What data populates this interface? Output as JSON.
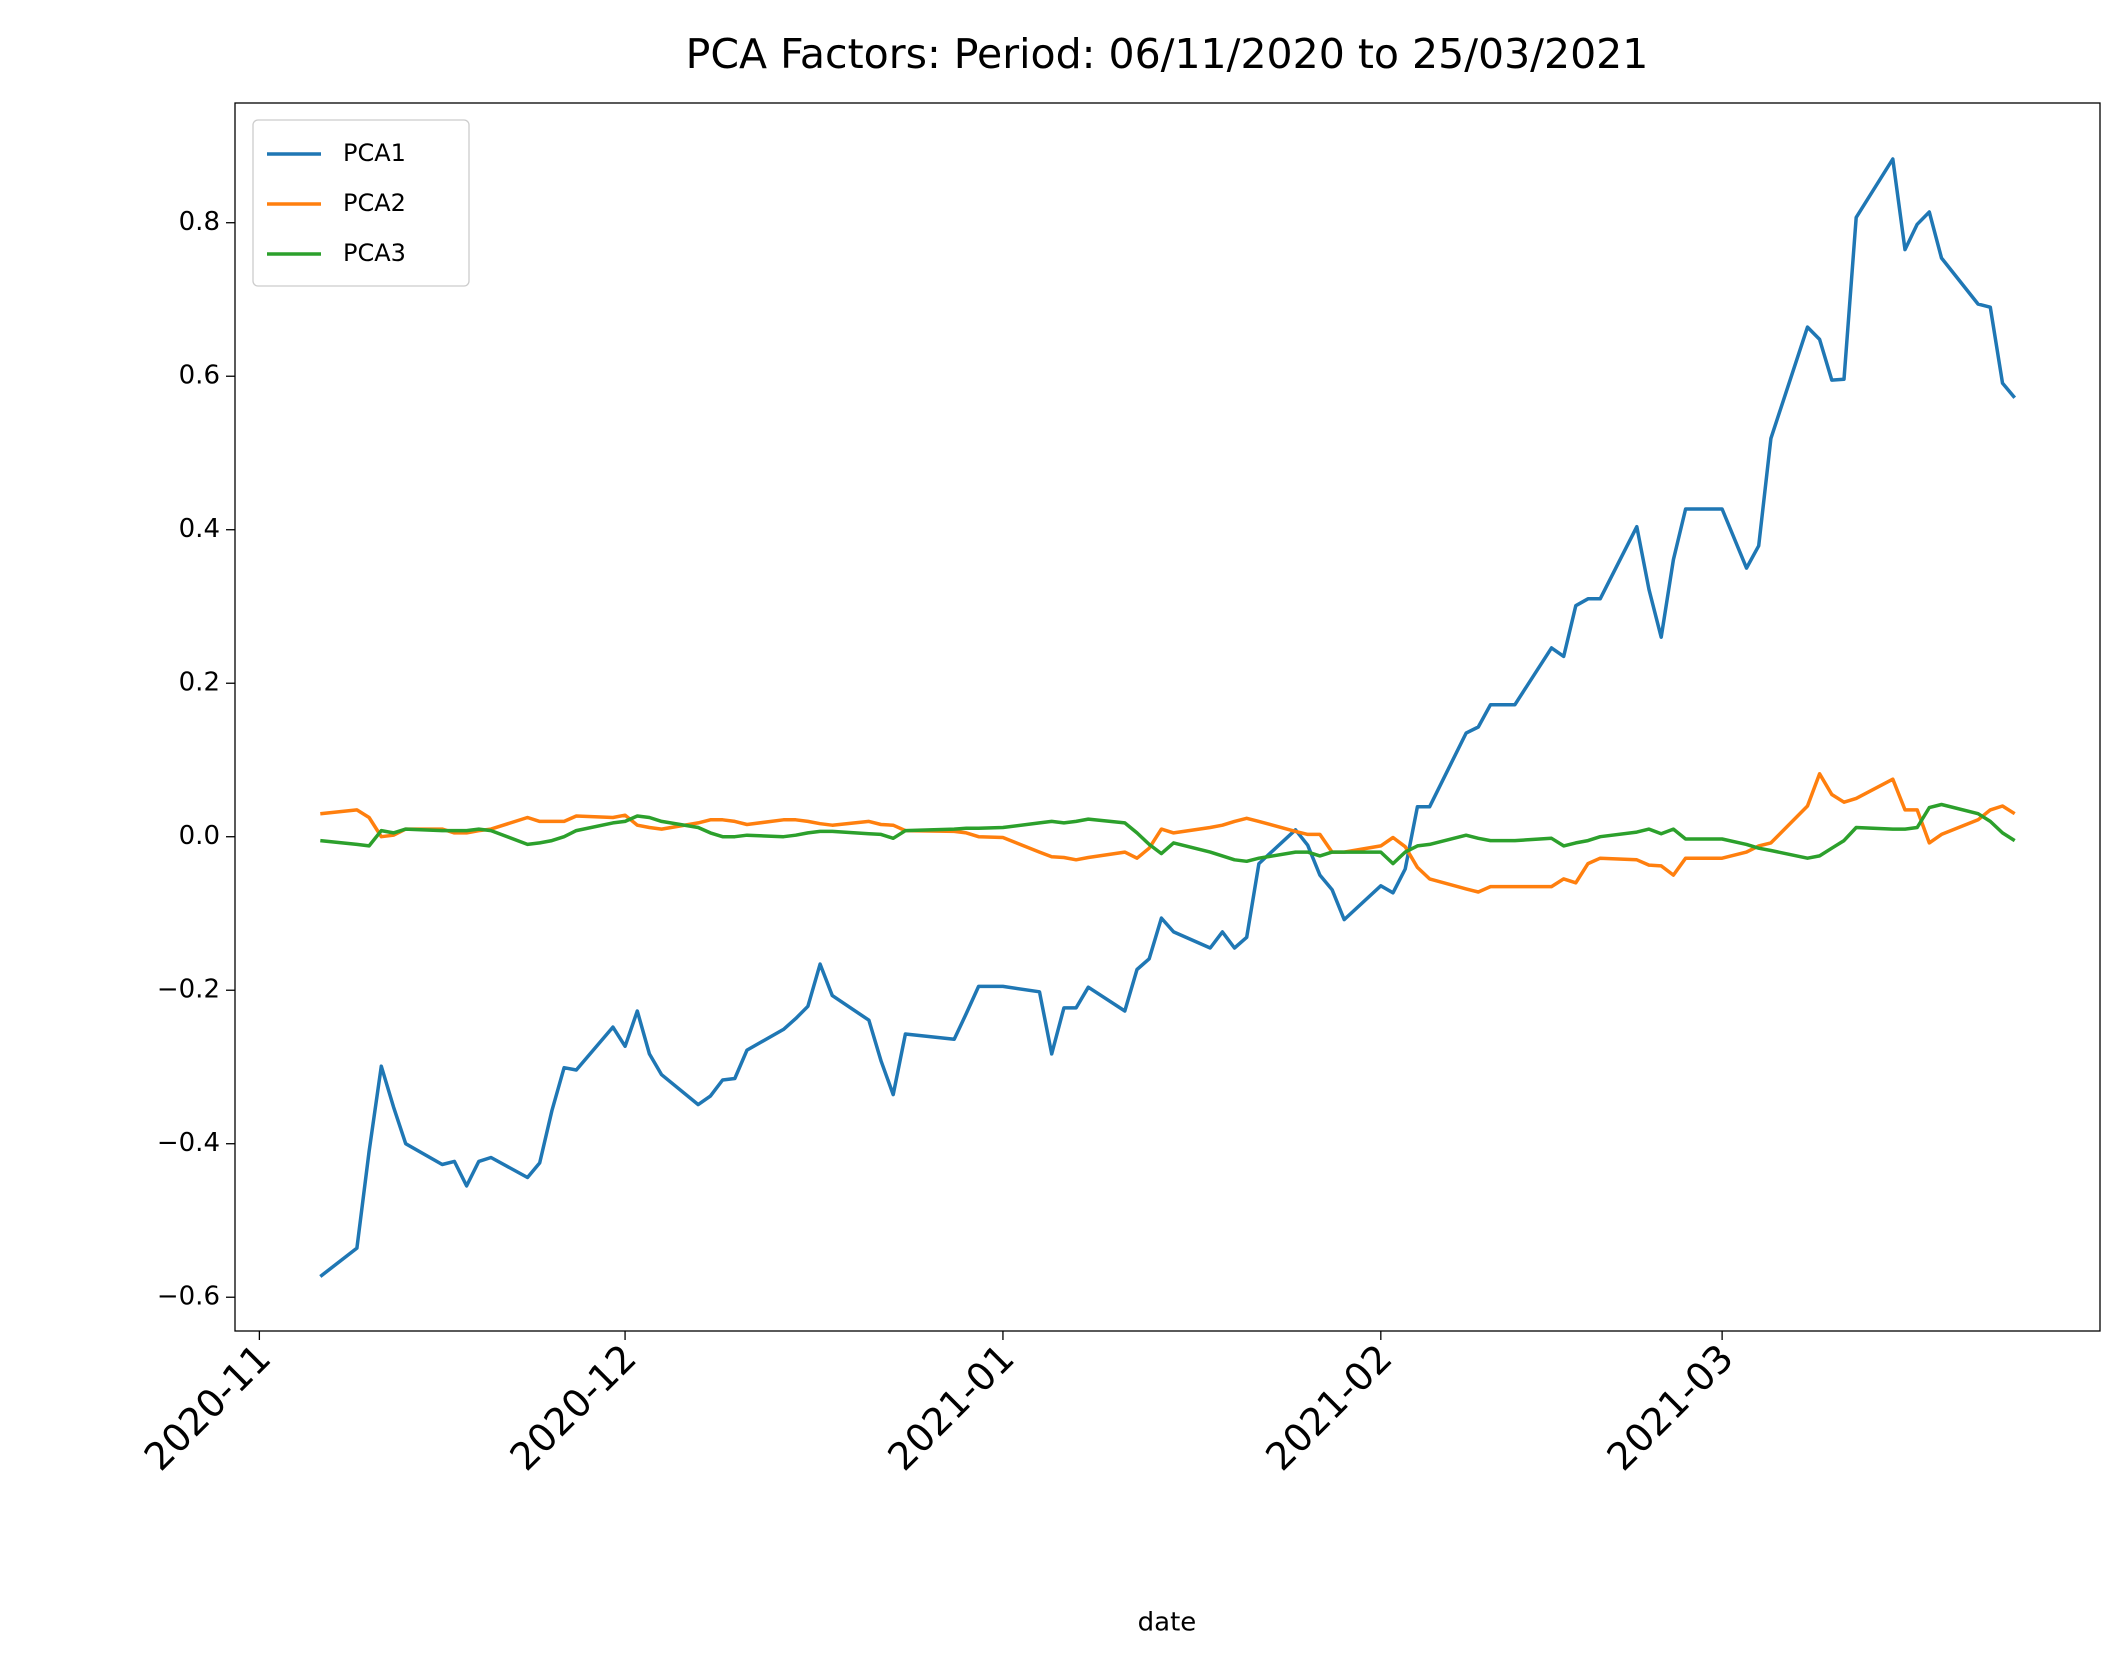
{
  "chart_data": {
    "type": "line",
    "title": "PCA Factors: Period: 06/11/2020 to 25/03/2021",
    "xlabel": "date",
    "x": [
      "2020-11-06",
      "2020-11-09",
      "2020-11-10",
      "2020-11-11",
      "2020-11-12",
      "2020-11-13",
      "2020-11-16",
      "2020-11-17",
      "2020-11-18",
      "2020-11-19",
      "2020-11-20",
      "2020-11-23",
      "2020-11-24",
      "2020-11-25",
      "2020-11-26",
      "2020-11-27",
      "2020-11-30",
      "2020-12-01",
      "2020-12-02",
      "2020-12-03",
      "2020-12-04",
      "2020-12-07",
      "2020-12-08",
      "2020-12-09",
      "2020-12-10",
      "2020-12-11",
      "2020-12-14",
      "2020-12-15",
      "2020-12-16",
      "2020-12-17",
      "2020-12-18",
      "2020-12-21",
      "2020-12-22",
      "2020-12-23",
      "2020-12-24",
      "2020-12-28",
      "2020-12-29",
      "2020-12-30",
      "2021-01-01",
      "2021-01-04",
      "2021-01-05",
      "2021-01-06",
      "2021-01-07",
      "2021-01-08",
      "2021-01-11",
      "2021-01-12",
      "2021-01-13",
      "2021-01-14",
      "2021-01-15",
      "2021-01-18",
      "2021-01-19",
      "2021-01-20",
      "2021-01-21",
      "2021-01-22",
      "2021-01-25",
      "2021-01-26",
      "2021-01-27",
      "2021-01-28",
      "2021-01-29",
      "2021-02-01",
      "2021-02-02",
      "2021-02-03",
      "2021-02-04",
      "2021-02-05",
      "2021-02-08",
      "2021-02-09",
      "2021-02-10",
      "2021-02-12",
      "2021-02-15",
      "2021-02-16",
      "2021-02-17",
      "2021-02-18",
      "2021-02-19",
      "2021-02-22",
      "2021-02-23",
      "2021-02-24",
      "2021-02-25",
      "2021-02-26",
      "2021-03-01",
      "2021-03-03",
      "2021-03-04",
      "2021-03-05",
      "2021-03-08",
      "2021-03-09",
      "2021-03-10",
      "2021-03-11",
      "2021-03-12",
      "2021-03-15",
      "2021-03-16",
      "2021-03-17",
      "2021-03-18",
      "2021-03-19",
      "2021-03-22",
      "2021-03-23",
      "2021-03-24",
      "2021-03-25"
    ],
    "series": [
      {
        "name": "PCA1",
        "color": "#1f77b4",
        "values": [
          -0.573,
          -0.536,
          -0.41,
          -0.299,
          -0.352,
          -0.4,
          -0.427,
          -0.423,
          -0.455,
          -0.423,
          -0.418,
          -0.444,
          -0.425,
          -0.357,
          -0.301,
          -0.304,
          -0.248,
          -0.273,
          -0.227,
          -0.283,
          -0.31,
          -0.349,
          -0.338,
          -0.317,
          -0.315,
          -0.278,
          -0.251,
          -0.237,
          -0.221,
          -0.166,
          -0.207,
          -0.239,
          -0.292,
          -0.336,
          -0.257,
          -0.264,
          -0.23,
          -0.195,
          -0.195,
          -0.202,
          -0.283,
          -0.223,
          -0.223,
          -0.196,
          -0.227,
          -0.173,
          -0.159,
          -0.106,
          -0.124,
          -0.145,
          -0.124,
          -0.145,
          -0.131,
          -0.035,
          0.009,
          -0.011,
          -0.05,
          -0.069,
          -0.108,
          -0.064,
          -0.073,
          -0.042,
          0.039,
          0.039,
          0.135,
          0.143,
          0.172,
          0.172,
          0.246,
          0.235,
          0.301,
          0.31,
          0.31,
          0.404,
          0.322,
          0.26,
          0.361,
          0.427,
          0.427,
          0.35,
          0.379,
          0.519,
          0.664,
          0.648,
          0.595,
          0.596,
          0.807,
          0.883,
          0.765,
          0.798,
          0.814,
          0.754,
          0.694,
          0.69,
          0.591,
          0.572
        ]
      },
      {
        "name": "PCA2",
        "color": "#ff7f0e",
        "values": [
          0.03,
          0.035,
          0.025,
          0.0,
          0.002,
          0.01,
          0.01,
          0.005,
          0.005,
          0.008,
          0.01,
          0.025,
          0.02,
          0.02,
          0.02,
          0.027,
          0.025,
          0.028,
          0.015,
          0.012,
          0.01,
          0.018,
          0.022,
          0.022,
          0.02,
          0.016,
          0.022,
          0.022,
          0.02,
          0.017,
          0.015,
          0.02,
          0.016,
          0.015,
          0.008,
          0.007,
          0.005,
          0.0,
          -0.001,
          -0.02,
          -0.026,
          -0.027,
          -0.03,
          -0.027,
          -0.02,
          -0.028,
          -0.015,
          0.01,
          0.005,
          0.012,
          0.015,
          0.02,
          0.024,
          0.02,
          0.007,
          0.003,
          0.003,
          -0.02,
          -0.02,
          -0.012,
          -0.001,
          -0.013,
          -0.04,
          -0.055,
          -0.068,
          -0.072,
          -0.065,
          -0.065,
          -0.065,
          -0.055,
          -0.06,
          -0.035,
          -0.028,
          -0.03,
          -0.037,
          -0.038,
          -0.05,
          -0.028,
          -0.028,
          -0.02,
          -0.012,
          -0.008,
          0.04,
          0.082,
          0.055,
          0.045,
          0.05,
          0.075,
          0.035,
          0.035,
          -0.008,
          0.003,
          0.022,
          0.035,
          0.04,
          0.03
        ]
      },
      {
        "name": "PCA3",
        "color": "#2ca02c",
        "values": [
          -0.005,
          -0.01,
          -0.012,
          0.008,
          0.005,
          0.01,
          0.008,
          0.008,
          0.008,
          0.01,
          0.008,
          -0.01,
          -0.008,
          -0.005,
          0.0,
          0.008,
          0.018,
          0.02,
          0.027,
          0.025,
          0.02,
          0.012,
          0.005,
          0.0,
          0.0,
          0.002,
          0.0,
          0.002,
          0.005,
          0.007,
          0.007,
          0.004,
          0.003,
          -0.002,
          0.008,
          0.01,
          0.011,
          0.011,
          0.012,
          0.018,
          0.02,
          0.018,
          0.02,
          0.023,
          0.018,
          0.005,
          -0.01,
          -0.022,
          -0.008,
          -0.02,
          -0.025,
          -0.03,
          -0.032,
          -0.028,
          -0.02,
          -0.02,
          -0.025,
          -0.02,
          -0.02,
          -0.02,
          -0.035,
          -0.02,
          -0.012,
          -0.01,
          0.002,
          -0.002,
          -0.005,
          -0.005,
          -0.002,
          -0.012,
          -0.008,
          -0.005,
          0.0,
          0.006,
          0.01,
          0.004,
          0.01,
          -0.003,
          -0.003,
          -0.01,
          -0.015,
          -0.018,
          -0.028,
          -0.025,
          -0.015,
          -0.005,
          0.012,
          0.01,
          0.01,
          0.012,
          0.038,
          0.042,
          0.03,
          0.02,
          0.005,
          -0.005
        ]
      }
    ],
    "xlim": [
      "2020-10-30",
      "2021-04-01"
    ],
    "xticks": [
      {
        "value": "2020-11-01",
        "label": "2020-11"
      },
      {
        "value": "2020-12-01",
        "label": "2020-12"
      },
      {
        "value": "2021-01-01",
        "label": "2021-01"
      },
      {
        "value": "2021-02-01",
        "label": "2021-02"
      },
      {
        "value": "2021-03-01",
        "label": "2021-03"
      }
    ],
    "ylim": [
      -0.644,
      0.956
    ],
    "yticks": [
      {
        "value": -0.6,
        "label": "−0.6"
      },
      {
        "value": -0.4,
        "label": "−0.4"
      },
      {
        "value": -0.2,
        "label": "−0.2"
      },
      {
        "value": 0,
        "label": "0.0"
      },
      0.2,
      0.4,
      0.6,
      0.8
    ],
    "grid": false,
    "legend": "upper left"
  }
}
